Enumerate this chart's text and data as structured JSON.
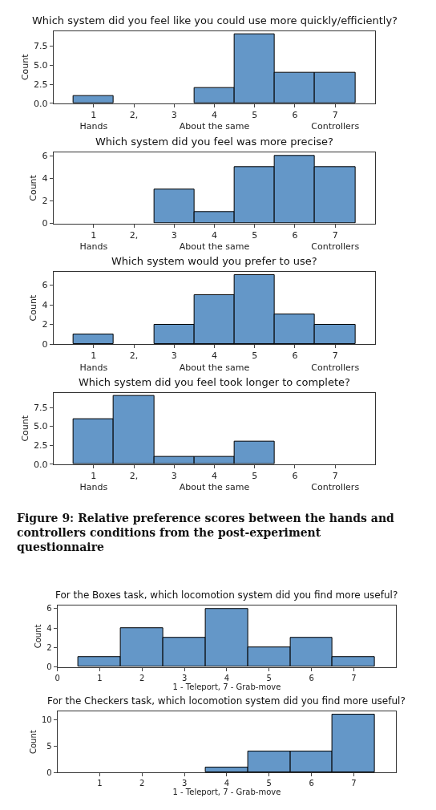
{
  "chart_data": [
    {
      "type": "histogram",
      "title": "Which system did you feel like you could use more quickly/efficiently?",
      "ylabel": "Count",
      "bins": [
        0.5,
        1.5,
        2.5,
        3.5,
        4.5,
        5.5,
        6.5,
        7.5
      ],
      "values": [
        1,
        0,
        0,
        2,
        9,
        4,
        4
      ],
      "color": "#6497c8",
      "xlim": [
        0,
        8
      ],
      "xticks": [
        {
          "value": 1,
          "label": "1\nHands"
        },
        {
          "value": 2,
          "label": "2,"
        },
        3,
        {
          "value": 4,
          "label": "4\nAbout the same"
        },
        5,
        6,
        {
          "value": 7,
          "label": "7\nControllers"
        }
      ],
      "ylim": [
        0,
        9.45
      ],
      "yticks": [
        {
          "value": 0,
          "label": "0.0"
        },
        {
          "value": 2.5,
          "label": "2.5"
        },
        {
          "value": 5,
          "label": "5.0"
        },
        {
          "value": 7.5,
          "label": "7.5"
        }
      ],
      "grid": false,
      "legend": false
    },
    {
      "type": "histogram",
      "title": "Which system did you feel was more precise?",
      "ylabel": "Count",
      "bins": [
        0.5,
        1.5,
        2.5,
        3.5,
        4.5,
        5.5,
        6.5,
        7.5
      ],
      "values": [
        0,
        0,
        3,
        1,
        5,
        6,
        5
      ],
      "color": "#6497c8",
      "xlim": [
        0,
        8
      ],
      "xticks": [
        {
          "value": 1,
          "label": "1\nHands"
        },
        {
          "value": 2,
          "label": "2,"
        },
        3,
        {
          "value": 4,
          "label": "4\nAbout the same"
        },
        5,
        6,
        {
          "value": 7,
          "label": "7\nControllers"
        }
      ],
      "ylim": [
        0,
        6.3
      ],
      "yticks": [
        0,
        2,
        4,
        6
      ],
      "grid": false,
      "legend": false
    },
    {
      "type": "histogram",
      "title": "Which system would you prefer to use?",
      "ylabel": "Count",
      "bins": [
        0.5,
        1.5,
        2.5,
        3.5,
        4.5,
        5.5,
        6.5,
        7.5
      ],
      "values": [
        1,
        0,
        2,
        5,
        7,
        3,
        2
      ],
      "color": "#6497c8",
      "xlim": [
        0,
        8
      ],
      "xticks": [
        {
          "value": 1,
          "label": "1\nHands"
        },
        {
          "value": 2,
          "label": "2,"
        },
        3,
        {
          "value": 4,
          "label": "4\nAbout the same"
        },
        5,
        6,
        {
          "value": 7,
          "label": "7\nControllers"
        }
      ],
      "ylim": [
        0,
        7.35
      ],
      "yticks": [
        0,
        2,
        4,
        6
      ],
      "grid": false,
      "legend": false
    },
    {
      "type": "histogram",
      "title": "Which system did you feel took longer to complete?",
      "ylabel": "Count",
      "bins": [
        0.5,
        1.5,
        2.5,
        3.5,
        4.5,
        5.5,
        6.5,
        7.5
      ],
      "values": [
        6,
        9,
        1,
        1,
        3,
        0,
        0
      ],
      "color": "#6497c8",
      "xlim": [
        0,
        8
      ],
      "xticks": [
        {
          "value": 1,
          "label": "1\nHands"
        },
        {
          "value": 2,
          "label": "2,"
        },
        3,
        {
          "value": 4,
          "label": "4\nAbout the same"
        },
        5,
        6,
        {
          "value": 7,
          "label": "7\nControllers"
        }
      ],
      "ylim": [
        0,
        9.45
      ],
      "yticks": [
        {
          "value": 0,
          "label": "0.0"
        },
        {
          "value": 2.5,
          "label": "2.5"
        },
        {
          "value": 5,
          "label": "5.0"
        },
        {
          "value": 7.5,
          "label": "7.5"
        }
      ],
      "grid": false,
      "legend": false,
      "annotations": [
        "Figure 9: Relative preference scores between the hands and controllers conditions from the post-experiment questionnaire"
      ]
    },
    {
      "type": "histogram",
      "title": "For the Boxes task, which locomotion system did you find more useful?",
      "xlabel": "1 - Teleport, 7 - Grab-move",
      "ylabel": "Count",
      "bins": [
        0.5,
        1.5,
        2.5,
        3.5,
        4.5,
        5.5,
        6.5,
        7.5
      ],
      "values": [
        1,
        4,
        3,
        6,
        2,
        3,
        1
      ],
      "color": "#6497c8",
      "xlim": [
        0,
        8
      ],
      "xticks": [
        0,
        1,
        2,
        3,
        4,
        5,
        6,
        7
      ],
      "ylim": [
        0,
        6.3
      ],
      "yticks": [
        0,
        2,
        4,
        6
      ],
      "grid": false,
      "legend": false
    },
    {
      "type": "histogram",
      "title": "For the Checkers task, which locomotion system did you find more useful?",
      "xlabel": "1 - Teleport, 7 - Grab-move",
      "ylabel": "Count",
      "bins": [
        0.5,
        1.5,
        2.5,
        3.5,
        4.5,
        5.5,
        6.5,
        7.5
      ],
      "values": [
        0,
        0,
        0,
        1,
        4,
        4,
        11
      ],
      "color": "#6497c8",
      "xlim": [
        0,
        8
      ],
      "xticks": [
        1,
        2,
        3,
        4,
        5,
        6,
        7
      ],
      "ylim": [
        0,
        11.55
      ],
      "yticks": [
        0,
        5,
        10
      ],
      "grid": false,
      "legend": false
    }
  ]
}
